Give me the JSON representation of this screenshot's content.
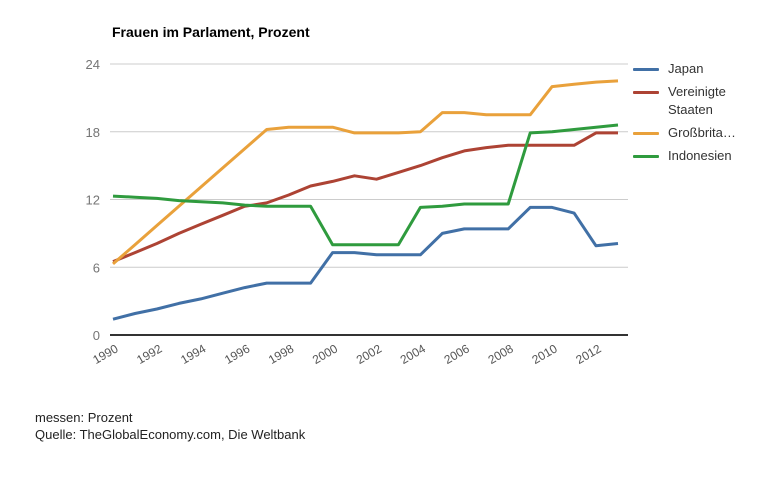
{
  "header": {
    "title": "Frauen im Parlament, Prozent"
  },
  "legend": {
    "items": [
      {
        "id": "japan",
        "label": "Japan",
        "color": "#4170a6"
      },
      {
        "id": "vereinigte-staaten",
        "label": "Vereinigte Staaten",
        "color": "#ad4334"
      },
      {
        "id": "grossbritannien",
        "label": "Großbrita…",
        "color": "#e9a13b"
      },
      {
        "id": "indonesien",
        "label": "Indonesien",
        "color": "#2f9b3e"
      }
    ]
  },
  "footer": {
    "measure_label": "messen: Prozent",
    "source_label": "Quelle: TheGlobalEconomy.com, Die Weltbank"
  },
  "chart_data": {
    "type": "line",
    "title": "Frauen im Parlament, Prozent",
    "xlabel": "",
    "ylabel": "",
    "ylim": [
      0,
      24
    ],
    "yticks": [
      0,
      6,
      12,
      18,
      24
    ],
    "xticks": [
      1990,
      1992,
      1994,
      1996,
      1998,
      2000,
      2002,
      2004,
      2006,
      2008,
      2010,
      2012
    ],
    "x_tick_rotation": -30,
    "grid": "horizontal",
    "legend_position": "right",
    "x": [
      1990,
      1991,
      1992,
      1993,
      1994,
      1995,
      1996,
      1997,
      1998,
      1999,
      2000,
      2001,
      2002,
      2003,
      2004,
      2005,
      2006,
      2007,
      2008,
      2009,
      2010,
      2011,
      2012,
      2013
    ],
    "series": [
      {
        "id": "japan",
        "name": "Japan",
        "color": "#4170a6",
        "values": [
          1.4,
          1.9,
          2.3,
          2.8,
          3.2,
          3.7,
          4.2,
          4.6,
          4.6,
          4.6,
          7.3,
          7.3,
          7.1,
          7.1,
          7.1,
          9.0,
          9.4,
          9.4,
          9.4,
          11.3,
          11.3,
          10.8,
          7.9,
          8.1
        ]
      },
      {
        "id": "vereinigte-staaten",
        "name": "Vereinigte Staaten",
        "color": "#ad4334",
        "values": [
          6.5,
          7.3,
          8.1,
          9.0,
          9.8,
          10.6,
          11.4,
          11.7,
          12.4,
          13.2,
          13.6,
          14.1,
          13.8,
          14.4,
          15.0,
          15.7,
          16.3,
          16.6,
          16.8,
          16.8,
          16.8,
          16.8,
          17.9,
          17.9
        ]
      },
      {
        "id": "grossbritannien",
        "name": "Großbritannien",
        "color": "#e9a13b",
        "values": [
          6.3,
          8.0,
          9.7,
          11.4,
          13.1,
          14.8,
          16.5,
          18.2,
          18.4,
          18.4,
          18.4,
          17.9,
          17.9,
          17.9,
          18.0,
          19.7,
          19.7,
          19.5,
          19.5,
          19.5,
          22.0,
          22.2,
          22.4,
          22.5
        ]
      },
      {
        "id": "indonesien",
        "name": "Indonesien",
        "color": "#2f9b3e",
        "values": [
          12.3,
          12.2,
          12.1,
          11.9,
          11.8,
          11.7,
          11.5,
          11.4,
          11.4,
          11.4,
          8.0,
          8.0,
          8.0,
          8.0,
          11.3,
          11.4,
          11.6,
          11.6,
          11.6,
          17.9,
          18.0,
          18.2,
          18.4,
          18.6
        ]
      }
    ]
  }
}
